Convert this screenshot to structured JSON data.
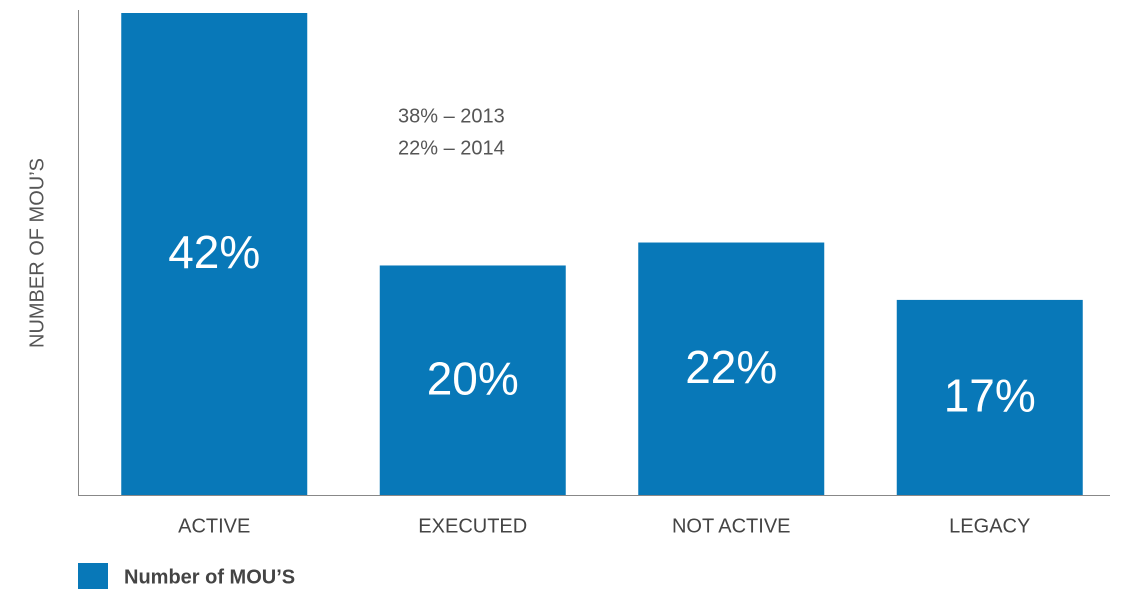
{
  "chart_data": {
    "type": "bar",
    "y_axis_label": "NUMBER OF MOU’S",
    "categories": [
      "ACTIVE",
      "EXECUTED",
      "NOT ACTIVE",
      "LEGACY"
    ],
    "series": [
      {
        "name": "Number of MOU’S",
        "color": "#0878b8",
        "values": [
          42,
          20,
          22,
          17
        ],
        "value_labels": [
          "42%",
          "20%",
          "22%",
          "17%"
        ]
      }
    ],
    "annotations": [
      "38% – 2013",
      "22% – 2014"
    ],
    "ylim": [
      0,
      42
    ],
    "legend": "bottom-left"
  }
}
